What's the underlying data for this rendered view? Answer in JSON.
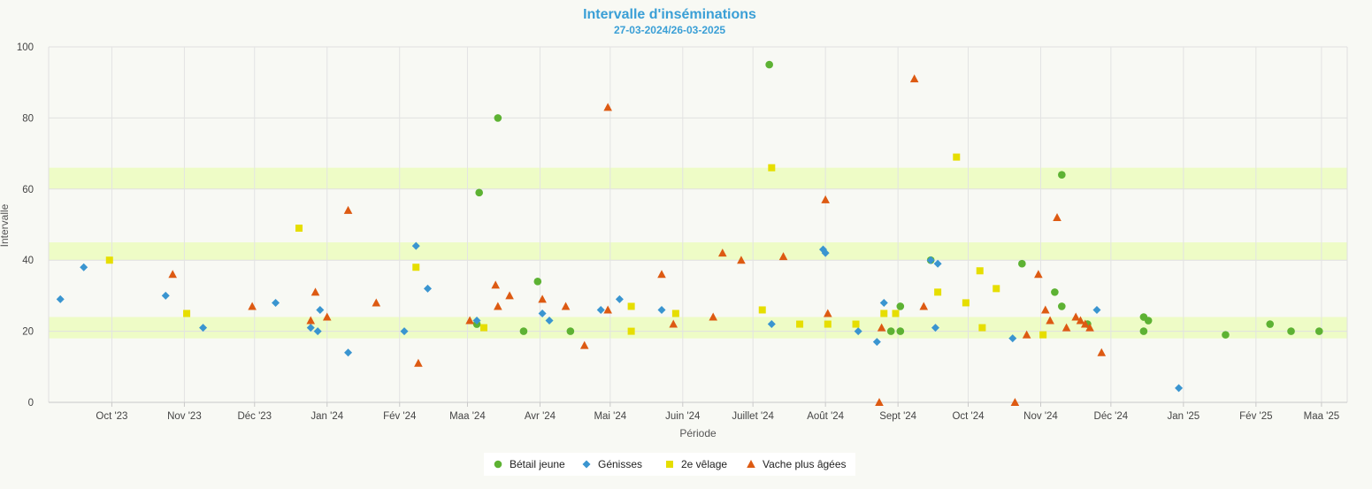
{
  "chart_data": {
    "type": "scatter",
    "title": "Intervalle d'inséminations",
    "subtitle": "27-03-2024/26-03-2025",
    "xlabel": "Période",
    "ylabel": "Intervalle",
    "ylim": [
      0,
      100
    ],
    "yticks": [
      0,
      20,
      40,
      60,
      80,
      100
    ],
    "xlim": [
      "2023-09-04",
      "2025-03-12"
    ],
    "xticks": [
      {
        "date": "2023-10-01",
        "label": "Oct '23"
      },
      {
        "date": "2023-11-01",
        "label": "Nov '23"
      },
      {
        "date": "2023-12-01",
        "label": "Déc '23"
      },
      {
        "date": "2024-01-01",
        "label": "Jan '24"
      },
      {
        "date": "2024-02-01",
        "label": "Fév '24"
      },
      {
        "date": "2024-03-01",
        "label": "Maa '24"
      },
      {
        "date": "2024-04-01",
        "label": "Avr '24"
      },
      {
        "date": "2024-05-01",
        "label": "Mai '24"
      },
      {
        "date": "2024-06-01",
        "label": "Juin '24"
      },
      {
        "date": "2024-07-01",
        "label": "Juillet '24"
      },
      {
        "date": "2024-08-01",
        "label": "Août '24"
      },
      {
        "date": "2024-09-01",
        "label": "Sept '24"
      },
      {
        "date": "2024-10-01",
        "label": "Oct '24"
      },
      {
        "date": "2024-11-01",
        "label": "Nov '24"
      },
      {
        "date": "2024-12-01",
        "label": "Déc '24"
      },
      {
        "date": "2025-01-01",
        "label": "Jan '25"
      },
      {
        "date": "2025-02-01",
        "label": "Fév '25"
      },
      {
        "date": "2025-03-01",
        "label": "Maa '25"
      }
    ],
    "bands": [
      [
        18,
        24
      ],
      [
        40,
        45
      ],
      [
        60,
        66
      ]
    ],
    "band_color": "#eefcc6",
    "grid": true,
    "legend_position": "bottom",
    "series": [
      {
        "name": "Bétail jeune",
        "marker": "circle",
        "color": "#5db233",
        "points": [
          [
            "2024-03-06",
            59
          ],
          [
            "2024-03-05",
            22
          ],
          [
            "2024-03-14",
            80
          ],
          [
            "2024-03-25",
            20
          ],
          [
            "2024-03-31",
            34
          ],
          [
            "2024-04-14",
            20
          ],
          [
            "2024-07-08",
            95
          ],
          [
            "2024-08-29",
            20
          ],
          [
            "2024-09-02",
            27
          ],
          [
            "2024-09-02",
            20
          ],
          [
            "2024-09-15",
            40
          ],
          [
            "2024-10-24",
            39
          ],
          [
            "2024-11-07",
            31
          ],
          [
            "2024-11-10",
            27
          ],
          [
            "2024-11-10",
            64
          ],
          [
            "2024-11-21",
            22
          ],
          [
            "2024-12-15",
            24
          ],
          [
            "2024-12-15",
            20
          ],
          [
            "2024-12-17",
            23
          ],
          [
            "2025-01-19",
            19
          ],
          [
            "2025-02-07",
            22
          ],
          [
            "2025-02-16",
            20
          ],
          [
            "2025-02-28",
            20
          ]
        ]
      },
      {
        "name": "Génisses",
        "marker": "diamond",
        "color": "#3a95d0",
        "points": [
          [
            "2023-09-09",
            29
          ],
          [
            "2023-09-19",
            38
          ],
          [
            "2023-10-24",
            30
          ],
          [
            "2023-11-09",
            21
          ],
          [
            "2023-12-10",
            28
          ],
          [
            "2023-12-25",
            21
          ],
          [
            "2023-12-28",
            20
          ],
          [
            "2023-12-29",
            26
          ],
          [
            "2024-01-10",
            14
          ],
          [
            "2024-02-03",
            20
          ],
          [
            "2024-02-08",
            44
          ],
          [
            "2024-02-13",
            32
          ],
          [
            "2024-03-05",
            23
          ],
          [
            "2024-04-02",
            25
          ],
          [
            "2024-04-05",
            23
          ],
          [
            "2024-04-27",
            26
          ],
          [
            "2024-05-05",
            29
          ],
          [
            "2024-05-23",
            26
          ],
          [
            "2024-07-09",
            22
          ],
          [
            "2024-07-31",
            43
          ],
          [
            "2024-08-01",
            42
          ],
          [
            "2024-08-15",
            20
          ],
          [
            "2024-08-23",
            17
          ],
          [
            "2024-08-26",
            28
          ],
          [
            "2024-09-15",
            40
          ],
          [
            "2024-09-17",
            21
          ],
          [
            "2024-09-18",
            39
          ],
          [
            "2024-10-20",
            18
          ],
          [
            "2024-11-25",
            26
          ],
          [
            "2024-12-30",
            4
          ]
        ]
      },
      {
        "name": "2e vêlage",
        "marker": "square",
        "color": "#e6de00",
        "points": [
          [
            "2023-09-30",
            40
          ],
          [
            "2023-11-02",
            25
          ],
          [
            "2023-12-20",
            49
          ],
          [
            "2024-02-08",
            38
          ],
          [
            "2024-03-08",
            21
          ],
          [
            "2024-05-10",
            27
          ],
          [
            "2024-05-10",
            20
          ],
          [
            "2024-05-29",
            25
          ],
          [
            "2024-07-05",
            26
          ],
          [
            "2024-07-09",
            66
          ],
          [
            "2024-07-21",
            22
          ],
          [
            "2024-08-02",
            22
          ],
          [
            "2024-08-14",
            22
          ],
          [
            "2024-08-26",
            25
          ],
          [
            "2024-08-31",
            25
          ],
          [
            "2024-09-18",
            31
          ],
          [
            "2024-09-26",
            69
          ],
          [
            "2024-09-30",
            28
          ],
          [
            "2024-10-06",
            37
          ],
          [
            "2024-10-07",
            21
          ],
          [
            "2024-10-13",
            32
          ],
          [
            "2024-11-02",
            19
          ]
        ]
      },
      {
        "name": "Vache plus âgées",
        "marker": "triangle",
        "color": "#dd5a12",
        "points": [
          [
            "2023-10-27",
            36
          ],
          [
            "2023-11-30",
            27
          ],
          [
            "2023-12-25",
            23
          ],
          [
            "2023-12-27",
            31
          ],
          [
            "2024-01-01",
            24
          ],
          [
            "2024-01-10",
            54
          ],
          [
            "2024-01-22",
            28
          ],
          [
            "2024-02-09",
            11
          ],
          [
            "2024-03-02",
            23
          ],
          [
            "2024-03-13",
            33
          ],
          [
            "2024-03-14",
            27
          ],
          [
            "2024-03-19",
            30
          ],
          [
            "2024-04-02",
            29
          ],
          [
            "2024-04-12",
            27
          ],
          [
            "2024-04-20",
            16
          ],
          [
            "2024-04-30",
            26
          ],
          [
            "2024-04-30",
            83
          ],
          [
            "2024-05-23",
            36
          ],
          [
            "2024-05-28",
            22
          ],
          [
            "2024-06-14",
            24
          ],
          [
            "2024-06-18",
            42
          ],
          [
            "2024-06-26",
            40
          ],
          [
            "2024-07-14",
            41
          ],
          [
            "2024-08-01",
            57
          ],
          [
            "2024-08-02",
            25
          ],
          [
            "2024-08-24",
            0
          ],
          [
            "2024-08-25",
            21
          ],
          [
            "2024-09-08",
            91
          ],
          [
            "2024-09-12",
            27
          ],
          [
            "2024-10-21",
            0
          ],
          [
            "2024-10-26",
            19
          ],
          [
            "2024-10-31",
            36
          ],
          [
            "2024-11-03",
            26
          ],
          [
            "2024-11-05",
            23
          ],
          [
            "2024-11-08",
            52
          ],
          [
            "2024-11-12",
            21
          ],
          [
            "2024-11-16",
            24
          ],
          [
            "2024-11-18",
            23
          ],
          [
            "2024-11-20",
            22
          ],
          [
            "2024-11-22",
            21
          ],
          [
            "2024-11-27",
            14
          ]
        ]
      }
    ]
  }
}
